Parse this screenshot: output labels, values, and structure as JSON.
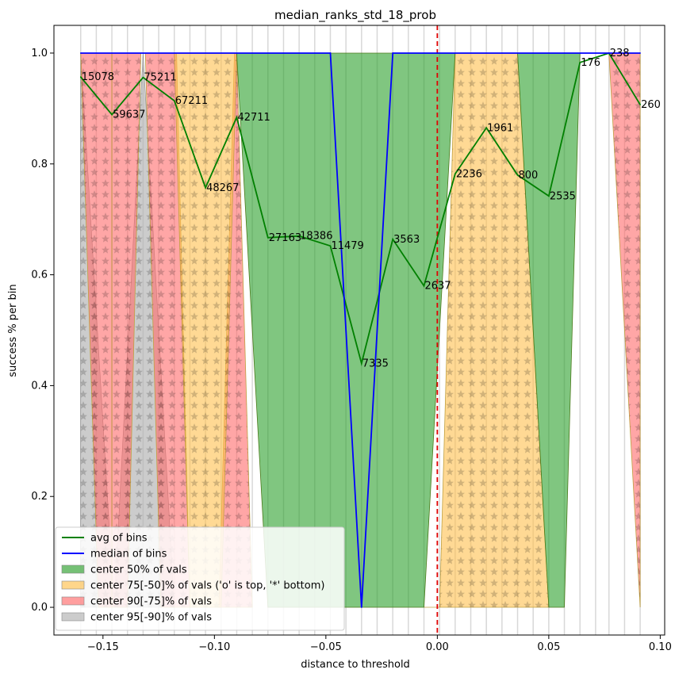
{
  "chart_data": {
    "type": "line",
    "title": "median_ranks_std_18_prob",
    "xlabel": "distance to threshold",
    "ylabel": "success % per bin",
    "xlim": [
      -0.172,
      0.102
    ],
    "ylim": [
      -0.05,
      1.05
    ],
    "x_ticks": [
      {
        "value": -0.15,
        "label": "−0.15"
      },
      {
        "value": -0.1,
        "label": "−0.10"
      },
      {
        "value": -0.05,
        "label": "−0.05"
      },
      {
        "value": 0.0,
        "label": "0.00"
      },
      {
        "value": 0.05,
        "label": "0.05"
      },
      {
        "value": 0.1,
        "label": "0.10"
      }
    ],
    "y_ticks": [
      {
        "value": 0.0,
        "label": "0.0"
      },
      {
        "value": 0.2,
        "label": "0.2"
      },
      {
        "value": 0.4,
        "label": "0.4"
      },
      {
        "value": 0.6,
        "label": "0.6"
      },
      {
        "value": 0.8,
        "label": "0.8"
      },
      {
        "value": 1.0,
        "label": "1.0"
      }
    ],
    "bin_edges": [
      -0.16,
      -0.153,
      -0.146,
      -0.139,
      -0.132,
      -0.125,
      -0.118,
      -0.111,
      -0.104,
      -0.097,
      -0.09,
      -0.083,
      -0.076,
      -0.069,
      -0.062,
      -0.055,
      -0.048,
      -0.041,
      -0.034,
      -0.027,
      -0.02,
      -0.013,
      -0.006,
      0.001,
      0.008,
      0.015,
      0.022,
      0.029,
      0.036,
      0.043,
      0.05,
      0.057,
      0.064,
      0.071,
      0.077,
      0.084,
      0.091
    ],
    "threshold_x": 0.0,
    "bands": [
      {
        "name": "center 95[-90]% of vals",
        "color": "#b0b0b0",
        "upper": [
          [
            -0.16,
            1.0
          ],
          [
            -0.145,
            0.0
          ],
          [
            -0.132,
            1.0
          ],
          [
            -0.118,
            0.0
          ]
        ],
        "lower": [
          [
            -0.16,
            0.0
          ],
          [
            -0.145,
            0.0
          ],
          [
            -0.132,
            0.0
          ],
          [
            -0.118,
            0.0
          ]
        ]
      },
      {
        "name": "center 90[-75]% of vals",
        "color": "#ff6b6b",
        "polys": [
          [
            [
              -0.16,
              1.0
            ],
            [
              -0.146,
              1.0
            ],
            [
              -0.146,
              0.0
            ],
            [
              -0.152,
              0.0
            ]
          ],
          [
            [
              -0.146,
              1.0
            ],
            [
              -0.133,
              1.0
            ],
            [
              -0.139,
              0.0
            ],
            [
              -0.146,
              0.0
            ]
          ],
          [
            [
              -0.131,
              1.0
            ],
            [
              -0.117,
              1.0
            ],
            [
              -0.111,
              0.0
            ],
            [
              -0.124,
              0.0
            ]
          ],
          [
            [
              -0.091,
              1.0
            ],
            [
              -0.09,
              1.0
            ],
            [
              -0.083,
              0.0
            ],
            [
              -0.098,
              0.0
            ]
          ],
          [
            [
              0.077,
              1.0
            ],
            [
              0.091,
              1.0
            ],
            [
              0.091,
              0.0
            ]
          ]
        ]
      },
      {
        "name": "center 75[-50]% of vals ('o' is top, '*' bottom)",
        "color": "#ffc04d",
        "polys": [
          [
            [
              -0.118,
              1.0
            ],
            [
              -0.09,
              1.0
            ],
            [
              -0.097,
              0.0
            ],
            [
              -0.104,
              0.0
            ],
            [
              -0.111,
              0.0
            ]
          ],
          [
            [
              0.001,
              0.0
            ],
            [
              0.008,
              1.0
            ],
            [
              0.036,
              1.0
            ],
            [
              0.05,
              0.0
            ],
            [
              -0.006,
              0.0
            ]
          ]
        ]
      },
      {
        "name": "center 50% of vals",
        "color": "#2ca02c",
        "polys": [
          [
            [
              -0.09,
              1.0
            ],
            [
              0.008,
              1.0
            ],
            [
              -0.006,
              0.0
            ],
            [
              -0.076,
              0.0
            ]
          ],
          [
            [
              0.036,
              1.0
            ],
            [
              0.064,
              1.0
            ],
            [
              0.057,
              0.0
            ],
            [
              0.05,
              0.0
            ]
          ]
        ]
      }
    ],
    "series": [
      {
        "name": "avg of bins",
        "color": "#008000",
        "x": [
          -0.16,
          -0.146,
          -0.132,
          -0.118,
          -0.104,
          -0.09,
          -0.076,
          -0.062,
          -0.048,
          -0.034,
          -0.02,
          -0.006,
          0.008,
          0.022,
          0.036,
          0.05,
          0.064,
          0.077,
          0.091
        ],
        "y": [
          0.957,
          0.889,
          0.956,
          0.914,
          0.757,
          0.884,
          0.667,
          0.67,
          0.652,
          0.44,
          0.664,
          0.58,
          0.782,
          0.865,
          0.78,
          0.742,
          0.983,
          1.0,
          0.907
        ]
      },
      {
        "name": "median of bins",
        "color": "#0000ff",
        "x": [
          -0.16,
          -0.048,
          -0.034,
          -0.02,
          0.091
        ],
        "y": [
          1.0,
          1.0,
          0.0,
          1.0,
          1.0
        ]
      }
    ],
    "annotations": [
      {
        "x": -0.16,
        "y": 0.957,
        "text": "15078"
      },
      {
        "x": -0.146,
        "y": 0.889,
        "text": "59637"
      },
      {
        "x": -0.132,
        "y": 0.956,
        "text": "75211"
      },
      {
        "x": -0.118,
        "y": 0.914,
        "text": "67211"
      },
      {
        "x": -0.104,
        "y": 0.757,
        "text": "48267"
      },
      {
        "x": -0.09,
        "y": 0.884,
        "text": "42711"
      },
      {
        "x": -0.076,
        "y": 0.667,
        "text": "27163"
      },
      {
        "x": -0.062,
        "y": 0.67,
        "text": "18386"
      },
      {
        "x": -0.048,
        "y": 0.652,
        "text": "11479"
      },
      {
        "x": -0.034,
        "y": 0.44,
        "text": "7335"
      },
      {
        "x": -0.02,
        "y": 0.664,
        "text": "3563"
      },
      {
        "x": -0.006,
        "y": 0.58,
        "text": "2637"
      },
      {
        "x": 0.008,
        "y": 0.782,
        "text": "2236"
      },
      {
        "x": 0.022,
        "y": 0.865,
        "text": "1961"
      },
      {
        "x": 0.036,
        "y": 0.78,
        "text": "800"
      },
      {
        "x": 0.05,
        "y": 0.742,
        "text": "2535"
      },
      {
        "x": 0.064,
        "y": 0.983,
        "text": "176"
      },
      {
        "x": 0.077,
        "y": 1.0,
        "text": "238"
      },
      {
        "x": 0.091,
        "y": 0.907,
        "text": "260"
      }
    ],
    "legend": {
      "placement": "lower-left",
      "entries": [
        {
          "label": "avg of bins",
          "kind": "line",
          "color": "#008000"
        },
        {
          "label": "median of bins",
          "kind": "line",
          "color": "#0000ff"
        },
        {
          "label": "center 50% of vals",
          "kind": "patch",
          "color": "#2ca02c"
        },
        {
          "label": "center 75[-50]% of vals ('o' is top, '*' bottom)",
          "kind": "patch",
          "color": "#ffc04d"
        },
        {
          "label": "center 90[-75]% of vals",
          "kind": "patch",
          "color": "#ff6b6b"
        },
        {
          "label": "center 95[-90]% of vals",
          "kind": "patch",
          "color": "#b0b0b0"
        }
      ]
    },
    "grid": "vertical bin edges"
  }
}
